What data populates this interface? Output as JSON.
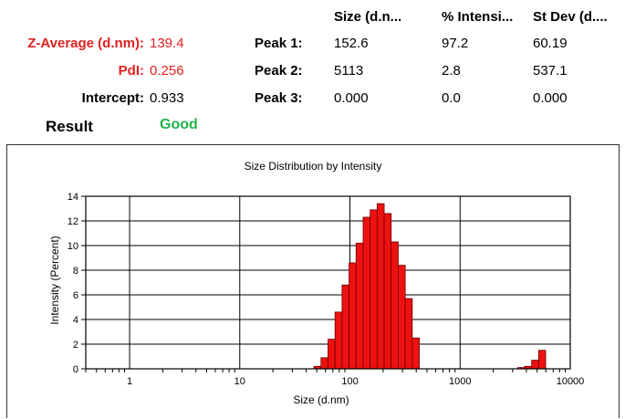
{
  "summary": {
    "z_average_label": "Z-Average (d.nm):",
    "z_average_value": "139.4",
    "pdi_label": "PdI:",
    "pdi_value": "0.256",
    "intercept_label": "Intercept:",
    "intercept_value": "0.933",
    "result_label": "Result",
    "result_value": "Good"
  },
  "peaks_table": {
    "headers": [
      "Size (d.n...",
      "% Intensi...",
      "St Dev (d...."
    ],
    "rows": [
      {
        "label": "Peak 1:",
        "size": "152.6",
        "intensity": "97.2",
        "stdev": "60.19"
      },
      {
        "label": "Peak 2:",
        "size": "5113",
        "intensity": "2.8",
        "stdev": "537.1"
      },
      {
        "label": "Peak 3:",
        "size": "0.000",
        "intensity": "0.0",
        "stdev": "0.000"
      }
    ]
  },
  "colors": {
    "summary_red": "#e02020",
    "good_green": "#21b24b",
    "bar_fill": "#ee1111",
    "bar_stroke": "#6a0000"
  },
  "chart_data": {
    "type": "bar",
    "title": "Size Distribution by Intensity",
    "xlabel": "Size (d.nm)",
    "ylabel": "Intensity (Percent)",
    "x_scale": "log",
    "xlim": [
      0.4,
      10000
    ],
    "ylim": [
      0,
      14
    ],
    "x_ticks": [
      1,
      10,
      100,
      1000,
      10000
    ],
    "x_tick_labels": [
      "1",
      "10",
      "100",
      "1000",
      "10000"
    ],
    "y_ticks": [
      0,
      2,
      4,
      6,
      8,
      10,
      12,
      14
    ],
    "y_tick_labels": [
      "0",
      "2",
      "4",
      "6",
      "8",
      "10",
      "12",
      "14"
    ],
    "grid": true,
    "series": [
      {
        "x": [
          50.75,
          58.77,
          68.06,
          78.82,
          91.28,
          105.7,
          122.4,
          141.8,
          164.2,
          190.1,
          220.2,
          255.0,
          295.3,
          342.0,
          396.1,
          3580,
          4145,
          4801,
          5560
        ],
        "values": [
          0.2,
          0.9,
          2.4,
          4.6,
          6.8,
          8.6,
          10.2,
          12.3,
          12.9,
          13.4,
          12.6,
          10.3,
          8.4,
          5.7,
          2.5,
          0.1,
          0.2,
          0.7,
          1.5
        ]
      }
    ]
  }
}
